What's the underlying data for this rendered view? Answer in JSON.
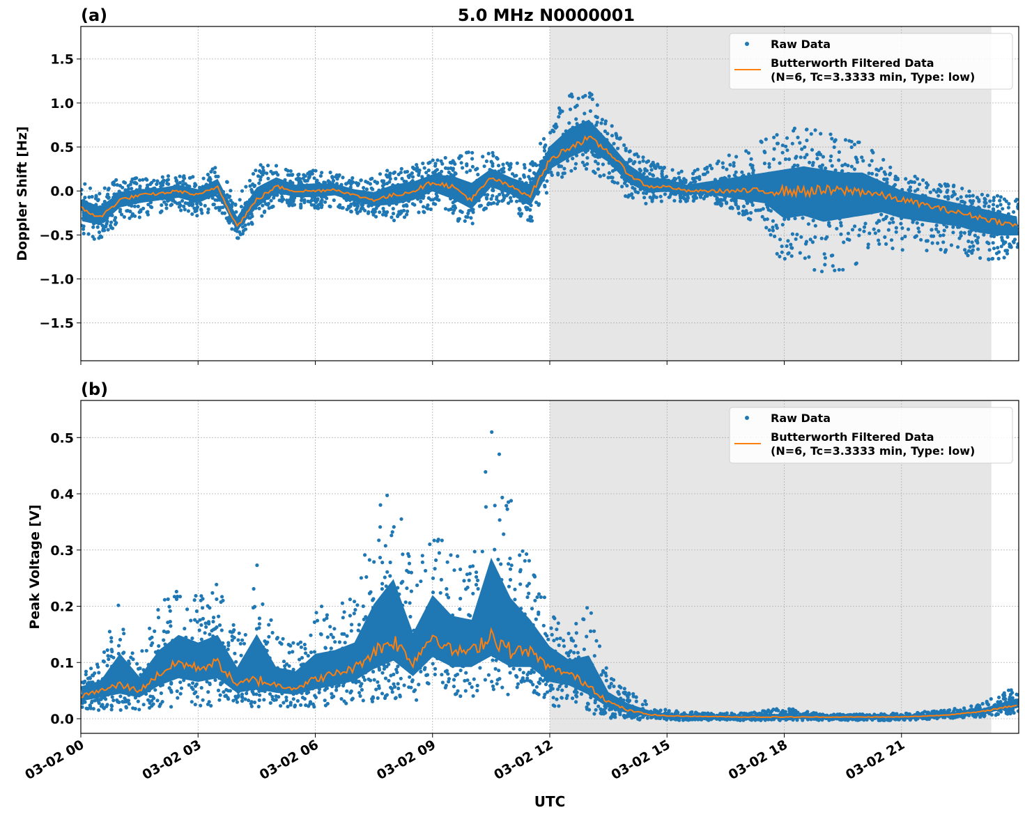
{
  "chart_data": [
    {
      "type": "scatter",
      "panel_label": "(a)",
      "title": "5.0 MHz N0000001",
      "xlabel": "",
      "ylabel": "Doppler Shift [Hz]",
      "xlim_hours_utc": [
        0,
        24
      ],
      "ylim": [
        -1.93,
        1.87
      ],
      "yticks": [
        -1.5,
        -1.0,
        -0.5,
        0.0,
        0.5,
        1.0,
        1.5
      ],
      "ytick_labels": [
        "−1.5",
        "−1.0",
        "−0.5",
        "0.0",
        "0.5",
        "1.0",
        "1.5"
      ],
      "grid": true,
      "legend_position": "top-right",
      "shaded_region_hours_utc": [
        12,
        23.3
      ],
      "shade_color": "#e6e6e6",
      "series": [
        {
          "name": "Raw Data",
          "kind": "points",
          "color": "#1f77b4",
          "hours": [
            0,
            0.5,
            1,
            1.5,
            2,
            2.5,
            3,
            3.5,
            4,
            4.5,
            5,
            5.5,
            6,
            6.5,
            7,
            7.5,
            8,
            8.5,
            9,
            9.5,
            10,
            10.5,
            11,
            11.5,
            12,
            12.5,
            13,
            13.5,
            14,
            14.5,
            15,
            15.5,
            16,
            16.5,
            17,
            17.5,
            18,
            18.5,
            19,
            19.5,
            20,
            20.5,
            21,
            21.5,
            22,
            22.5,
            23,
            23.5,
            24
          ],
          "lower": [
            -0.6,
            -0.55,
            -0.35,
            -0.3,
            -0.25,
            -0.22,
            -0.3,
            -0.2,
            -0.55,
            -0.35,
            -0.15,
            -0.2,
            -0.2,
            -0.18,
            -0.25,
            -0.3,
            -0.35,
            -0.3,
            -0.2,
            -0.35,
            -0.4,
            -0.15,
            -0.2,
            -0.4,
            0.05,
            0.15,
            0.25,
            0.1,
            -0.1,
            -0.15,
            -0.12,
            -0.12,
            -0.1,
            -0.2,
            -0.3,
            -0.4,
            -0.9,
            -0.8,
            -1.0,
            -0.9,
            -0.8,
            -0.6,
            -0.7,
            -0.7,
            -0.7,
            -0.7,
            -0.8,
            -0.8,
            -0.7
          ],
          "upper": [
            0.1,
            0.05,
            0.15,
            0.15,
            0.15,
            0.2,
            0.15,
            0.3,
            -0.1,
            0.3,
            0.35,
            0.2,
            0.25,
            0.2,
            0.15,
            0.15,
            0.3,
            0.3,
            0.35,
            0.4,
            0.45,
            0.45,
            0.35,
            0.3,
            0.8,
            1.1,
            1.2,
            0.8,
            0.5,
            0.35,
            0.3,
            0.2,
            0.3,
            0.4,
            0.5,
            0.6,
            0.7,
            0.8,
            0.7,
            0.6,
            0.6,
            0.4,
            0.2,
            0.15,
            0.1,
            0.05,
            0.0,
            -0.05,
            -0.1
          ]
        },
        {
          "name": "Butterworth Filtered Data\n(N=6, Tc=3.3333 min, Type: low)",
          "kind": "line",
          "color": "#ff7f0e",
          "hours": [
            0,
            0.5,
            1,
            1.5,
            2,
            2.5,
            3,
            3.5,
            4,
            4.5,
            5,
            5.5,
            6,
            6.5,
            7,
            7.5,
            8,
            8.5,
            9,
            9.5,
            10,
            10.5,
            11,
            11.5,
            12,
            12.5,
            13,
            13.5,
            14,
            14.5,
            15,
            15.5,
            16,
            16.5,
            17,
            17.5,
            18,
            18.5,
            19,
            19.5,
            20,
            20.5,
            21,
            21.5,
            22,
            22.5,
            23,
            23.5,
            24
          ],
          "values": [
            -0.2,
            -0.3,
            -0.1,
            -0.05,
            -0.03,
            0.0,
            -0.05,
            0.05,
            -0.4,
            -0.1,
            0.05,
            0.0,
            0.0,
            0.02,
            -0.05,
            -0.1,
            -0.05,
            0.0,
            0.1,
            0.05,
            -0.1,
            0.15,
            0.05,
            -0.05,
            0.35,
            0.5,
            0.6,
            0.45,
            0.2,
            0.05,
            0.05,
            0.0,
            0.0,
            0.0,
            0.0,
            0.0,
            0.0,
            0.0,
            0.0,
            0.0,
            0.0,
            -0.05,
            -0.1,
            -0.15,
            -0.2,
            -0.25,
            -0.3,
            -0.35,
            -0.4
          ]
        }
      ]
    },
    {
      "type": "scatter",
      "panel_label": "(b)",
      "title": "",
      "xlabel": "UTC",
      "ylabel": "Peak Voltage [V]",
      "xlim_hours_utc": [
        0,
        24
      ],
      "ylim": [
        -0.026,
        0.566
      ],
      "yticks": [
        0.0,
        0.1,
        0.2,
        0.3,
        0.4,
        0.5
      ],
      "ytick_labels": [
        "0.0",
        "0.1",
        "0.2",
        "0.3",
        "0.4",
        "0.5"
      ],
      "xticks_hours_utc": [
        0,
        3,
        6,
        9,
        12,
        15,
        18,
        21
      ],
      "xtick_labels": [
        "03-02 00",
        "03-02 03",
        "03-02 06",
        "03-02 09",
        "03-02 12",
        "03-02 15",
        "03-02 18",
        "03-02 21"
      ],
      "grid": true,
      "legend_position": "top-right",
      "shaded_region_hours_utc": [
        12,
        23.3
      ],
      "shade_color": "#e6e6e6",
      "series": [
        {
          "name": "Raw Data",
          "kind": "points",
          "color": "#1f77b4",
          "hours": [
            0,
            0.5,
            1,
            1.5,
            2,
            2.5,
            3,
            3.5,
            4,
            4.5,
            5,
            5.5,
            6,
            6.5,
            7,
            7.5,
            8,
            8.5,
            9,
            9.5,
            10,
            10.5,
            11,
            11.5,
            12,
            12.5,
            13,
            13.5,
            14,
            14.5,
            15,
            16,
            17,
            18,
            19,
            20,
            21,
            22,
            23,
            24
          ],
          "lower": [
            0.015,
            0.015,
            0.015,
            0.015,
            0.02,
            0.02,
            0.02,
            0.02,
            0.02,
            0.02,
            0.02,
            0.02,
            0.02,
            0.02,
            0.025,
            0.03,
            0.035,
            0.03,
            0.035,
            0.04,
            0.04,
            0.04,
            0.04,
            0.04,
            0.02,
            0.02,
            0.01,
            0.0,
            0.0,
            -0.003,
            -0.003,
            -0.003,
            -0.003,
            -0.003,
            -0.003,
            -0.003,
            -0.003,
            0.0,
            0.003,
            0.01
          ],
          "upper": [
            0.09,
            0.1,
            0.22,
            0.12,
            0.2,
            0.24,
            0.22,
            0.24,
            0.15,
            0.3,
            0.15,
            0.14,
            0.2,
            0.2,
            0.22,
            0.36,
            0.45,
            0.25,
            0.35,
            0.3,
            0.28,
            0.54,
            0.39,
            0.28,
            0.2,
            0.15,
            0.21,
            0.08,
            0.05,
            0.03,
            0.015,
            0.01,
            0.01,
            0.02,
            0.008,
            0.008,
            0.01,
            0.015,
            0.025,
            0.06
          ]
        },
        {
          "name": "Butterworth Filtered Data\n(N=6, Tc=3.3333 min, Type: low)",
          "kind": "line",
          "color": "#ff7f0e",
          "hours": [
            0,
            0.5,
            1,
            1.5,
            2,
            2.5,
            3,
            3.5,
            4,
            4.5,
            5,
            5.5,
            6,
            6.5,
            7,
            7.5,
            8,
            8.5,
            9,
            9.5,
            10,
            10.5,
            11,
            11.5,
            12,
            12.5,
            13,
            13.5,
            14,
            14.5,
            15,
            16,
            17,
            18,
            19,
            20,
            21,
            22,
            23,
            24
          ],
          "values": [
            0.04,
            0.05,
            0.06,
            0.05,
            0.08,
            0.1,
            0.09,
            0.1,
            0.06,
            0.07,
            0.06,
            0.055,
            0.07,
            0.08,
            0.09,
            0.12,
            0.14,
            0.1,
            0.15,
            0.12,
            0.12,
            0.15,
            0.12,
            0.12,
            0.09,
            0.08,
            0.06,
            0.03,
            0.015,
            0.008,
            0.005,
            0.004,
            0.003,
            0.003,
            0.003,
            0.003,
            0.003,
            0.006,
            0.012,
            0.025
          ]
        }
      ]
    }
  ],
  "legend": {
    "raw_label": "Raw Data",
    "filtered_label_line1": "Butterworth Filtered Data",
    "filtered_label_line2": "(N=6, Tc=3.3333 min, Type: low)"
  }
}
